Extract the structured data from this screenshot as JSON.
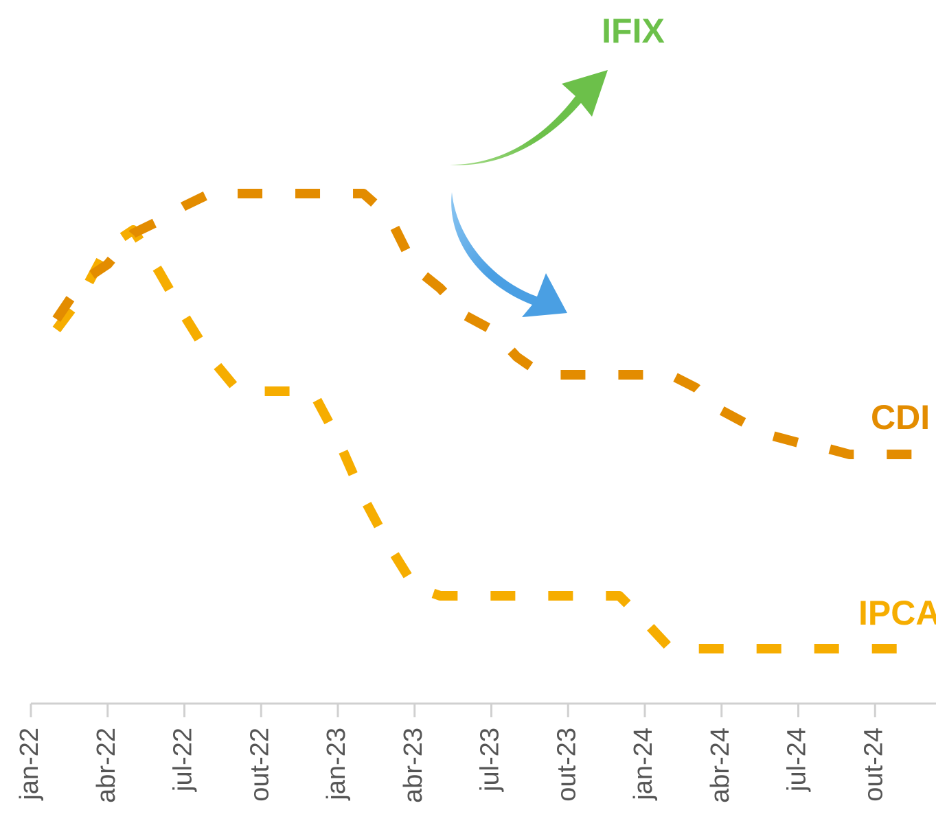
{
  "chart_data": {
    "type": "line",
    "x": [
      "2022-02",
      "2022-03",
      "2022-04",
      "2022-05",
      "2022-06",
      "2022-07",
      "2022-08",
      "2022-09",
      "2022-10",
      "2022-11",
      "2022-12",
      "2023-01",
      "2023-02",
      "2023-03",
      "2023-04",
      "2023-05",
      "2023-06",
      "2023-07",
      "2023-08",
      "2023-09",
      "2023-10",
      "2023-11",
      "2023-12",
      "2024-01",
      "2024-02",
      "2024-03",
      "2024-04",
      "2024-05",
      "2024-06",
      "2024-07",
      "2024-08",
      "2024-09",
      "2024-10",
      "2024-11",
      "2024-12"
    ],
    "series": [
      {
        "name": "CDI",
        "color": "#e38c00",
        "values": [
          56,
          61.5,
          64,
          68.5,
          70.3,
          72.5,
          74.3,
          74.3,
          74.3,
          74.3,
          74.3,
          74.3,
          74.3,
          71,
          63.5,
          60.5,
          56.5,
          54.5,
          50.5,
          47.9,
          47.9,
          47.9,
          47.9,
          47.9,
          47.9,
          46,
          42.7,
          40.7,
          39,
          38,
          37.3,
          36.3,
          36.3,
          36.3,
          36.3
        ]
      },
      {
        "name": "IPCA",
        "color": "#f6ad00",
        "values": [
          54.5,
          59.5,
          66.5,
          69,
          63,
          56.5,
          50.5,
          46,
          45.5,
          45.5,
          45.5,
          38.5,
          30,
          23,
          17,
          15.7,
          15.7,
          15.7,
          15.7,
          15.7,
          15.7,
          15.7,
          15.7,
          12,
          8,
          8,
          8,
          8,
          8,
          8,
          8,
          8,
          8,
          8,
          8
        ]
      }
    ],
    "annotations": [
      {
        "text": "IFIX",
        "color": "#6cc04a"
      }
    ],
    "xlim": [
      "2022-01",
      "2025-01"
    ],
    "xticks": [
      {
        "value": "2022-01",
        "label": "jan-22"
      },
      {
        "value": "2022-04",
        "label": "abr-22"
      },
      {
        "value": "2022-07",
        "label": "jul-22"
      },
      {
        "value": "2022-10",
        "label": "out-22"
      },
      {
        "value": "2023-01",
        "label": "jan-23"
      },
      {
        "value": "2023-04",
        "label": "abr-23"
      },
      {
        "value": "2023-07",
        "label": "jul-23"
      },
      {
        "value": "2023-10",
        "label": "out-23"
      },
      {
        "value": "2024-01",
        "label": "jan-24"
      },
      {
        "value": "2024-04",
        "label": "abr-24"
      },
      {
        "value": "2024-07",
        "label": "jul-24"
      },
      {
        "value": "2024-10",
        "label": "out-24"
      }
    ],
    "ylim": [
      0,
      102.5
    ]
  }
}
